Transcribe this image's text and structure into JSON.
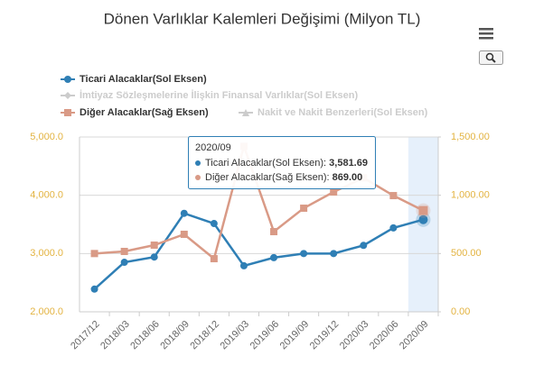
{
  "chart_data": {
    "type": "line",
    "title": "Dönen Varlıklar Kalemleri Değişimi (Milyon TL)",
    "categories": [
      "2017/12",
      "2018/03",
      "2018/06",
      "2018/09",
      "2018/12",
      "2019/03",
      "2019/06",
      "2019/09",
      "2019/12",
      "2020/03",
      "2020/06",
      "2020/09"
    ],
    "series": [
      {
        "name": "Ticari Alacaklar(Sol Eksen)",
        "color": "#2f7fb5",
        "marker": "circle",
        "visible": true,
        "values": [
          2390,
          2850,
          2940,
          3690,
          3515,
          2790,
          2930,
          3000,
          3000,
          3140,
          3440,
          3581.69
        ],
        "value_labels": [
          null,
          null,
          null,
          null,
          null,
          null,
          null,
          null,
          null,
          null,
          null,
          "3,581.69"
        ]
      },
      {
        "name": "İmtiyaz Sözleşmelerine İlişkin Finansal Varlıklar(Sol Eksen)",
        "color": "#cccccc",
        "marker": "diamond",
        "visible": false
      },
      {
        "name": "Diğer Alacaklar(Sağ Eksen)",
        "color": "#d99a86",
        "marker": "square",
        "visible": true,
        "axis": "y2",
        "values": [
          500,
          518,
          572,
          665,
          456,
          1420,
          688,
          889,
          1028,
          1150,
          997,
          869
        ],
        "value_labels": [
          null,
          null,
          null,
          null,
          null,
          null,
          null,
          null,
          null,
          null,
          null,
          "869.00"
        ]
      },
      {
        "name": "Nakit ve Nakit Benzerleri(Sol Eksen)",
        "color": "#cccccc",
        "marker": "triangle",
        "visible": false
      }
    ],
    "ylim": [
      2000,
      5000
    ],
    "yticks": [
      {
        "value": 2000,
        "label": "2,000.0"
      },
      {
        "value": 3000,
        "label": "3,000.0"
      },
      {
        "value": 4000,
        "label": "4,000.0"
      },
      {
        "value": 5000,
        "label": "5,000.0"
      }
    ],
    "y2lim": [
      0,
      1500
    ],
    "y2ticks": [
      {
        "value": 0,
        "label": "0.00"
      },
      {
        "value": 500,
        "label": "500.00"
      },
      {
        "value": 1000,
        "label": "1,000.00"
      },
      {
        "value": 1500,
        "label": "1,500.00"
      }
    ],
    "grid": true
  }
}
